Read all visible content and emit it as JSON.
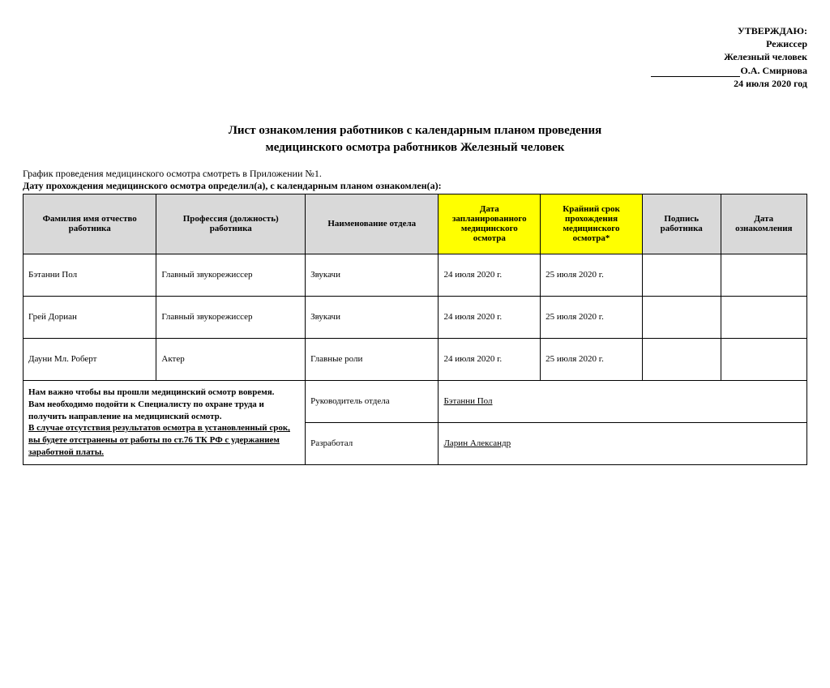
{
  "approval": {
    "line1": "УТВЕРЖДАЮ:",
    "line2": "Режиссер",
    "line3": "Железный человек",
    "signer": "О.А. Смирнова",
    "date": "24 июля 2020 год"
  },
  "title": {
    "line1": "Лист ознакомления работников с календарным планом проведения",
    "line2": "медицинского осмотра работников Железный человек"
  },
  "intro": {
    "line1": "График проведения медицинского осмотра смотреть в Приложении №1.",
    "line2": "Дату прохождения медицинского осмотра определил(а), с календарным планом ознакомлен(а):"
  },
  "columns": {
    "name": "Фамилия имя отчество работника",
    "profession": "Профессия (должность) работника",
    "department": "Наименование отдела",
    "planned_date": "Дата запланированного медицинского осмотра",
    "deadline": "Крайний срок прохождения медицинского осмотра*",
    "signature": "Подпись работника",
    "ack_date": "Дата ознакомления"
  },
  "rows": [
    {
      "name": "Бэтанни Пол",
      "profession": "Главный звукорежиссер",
      "department": "Звукачи",
      "planned": "24 июля 2020 г.",
      "deadline": "25 июля 2020 г."
    },
    {
      "name": "Грей Дориан",
      "profession": "Главный звукорежиссер",
      "department": "Звукачи",
      "planned": "24 июля 2020 г.",
      "deadline": "25 июля 2020 г."
    },
    {
      "name": "Дауни Мл. Роберт",
      "profession": "Актер",
      "department": "Главные роли",
      "planned": "24 июля 2020 г.",
      "deadline": "25 июля 2020 г."
    }
  ],
  "footer_note": {
    "line1": "Нам важно чтобы вы прошли медицинский осмотр вовремя.",
    "line2": "Вам необходимо подойти к Специалисту по охране труда и",
    "line3": "получить направление на медицинский осмотр.",
    "line4": "В случае отсутствия результатов осмотра в установленный срок,",
    "line5": "вы будете отстранены от работы по ст.76 ТК РФ с удержанием",
    "line6": "заработной платы."
  },
  "signoff": {
    "head_label": "Руководитель отдела",
    "head_name": "Бэтанни Пол",
    "dev_label": "Разработал",
    "dev_name": "Ларин Александр"
  },
  "style": {
    "header_bg": "#d9d9d9",
    "highlight_bg": "#ffff00",
    "border_color": "#000000",
    "page_bg": "#ffffff",
    "text_color": "#000000"
  }
}
